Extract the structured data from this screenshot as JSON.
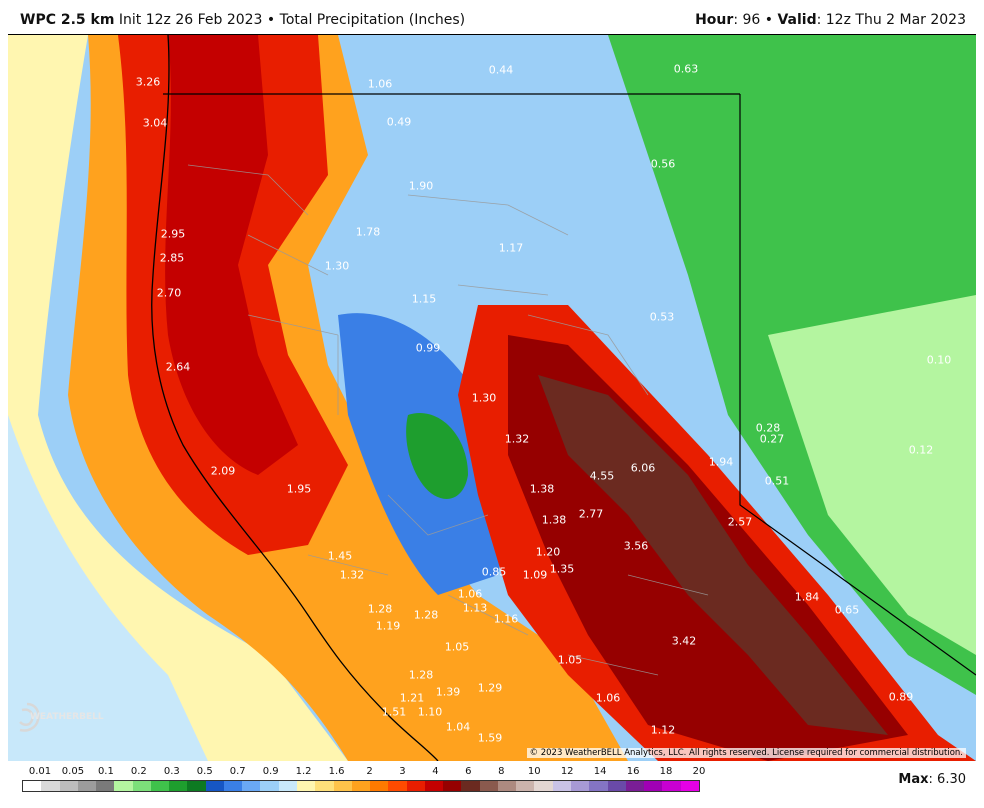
{
  "header": {
    "model": "WPC 2.5 km",
    "init": "Init 12z 26 Feb 2023",
    "sep1": "•",
    "product": "Total Precipitation (Inches)",
    "hour_label": "Hour",
    "hour_value": ": 96",
    "sep2": "•",
    "valid_label": "Valid",
    "valid_value": ": 12z Thu 2 Mar 2023"
  },
  "copyright": "© 2023 WeatherBELL Analytics, LLC. All rights reserved. License required for commercial distribution.",
  "logo_text": "WEATHERBELL",
  "max_label": "Max",
  "max_value": ": 6.30",
  "legend": {
    "labels": [
      "0.01",
      "0.05",
      "0.1",
      "0.2",
      "0.3",
      "0.5",
      "0.7",
      "0.9",
      "1.2",
      "1.6",
      "2",
      "3",
      "4",
      "6",
      "8",
      "10",
      "12",
      "14",
      "16",
      "18",
      "20"
    ],
    "colors": [
      "#ffffff",
      "#d9d9d9",
      "#bdbdbd",
      "#9c9c9c",
      "#7a7a7a",
      "#b4f5a0",
      "#7ce07a",
      "#3fc24b",
      "#1e9e2e",
      "#0d7a22",
      "#1656c4",
      "#3a7fe6",
      "#6aa8f4",
      "#9ccff7",
      "#c8e8fa",
      "#fff6b0",
      "#ffe07a",
      "#ffc34a",
      "#ffa21e",
      "#ff7a00",
      "#ff4b00",
      "#e81e00",
      "#c40000",
      "#960000",
      "#6b2a20",
      "#8a5a4e",
      "#ad8a80",
      "#cbb3ac",
      "#e3d6d2",
      "#c9c2e6",
      "#a79ad6",
      "#8474c4",
      "#6a4aa8",
      "#7a1e96",
      "#a000b4",
      "#c800d2",
      "#e600e6"
    ]
  },
  "values": [
    {
      "t": "3.26"
    },
    {
      "t": "1.06"
    },
    {
      "t": "0.44"
    },
    {
      "t": "0.63"
    },
    {
      "t": "3.04"
    },
    {
      "t": "0.49"
    },
    {
      "t": "0.56"
    },
    {
      "t": "1.90"
    },
    {
      "t": "2.95"
    },
    {
      "t": "1.78"
    },
    {
      "t": "2.85"
    },
    {
      "t": "1.17"
    },
    {
      "t": "1.30"
    },
    {
      "t": "2.70"
    },
    {
      "t": "1.15"
    },
    {
      "t": "0.53"
    },
    {
      "t": "0.99"
    },
    {
      "t": "0.10"
    },
    {
      "t": "2.64"
    },
    {
      "t": "1.30"
    },
    {
      "t": "0.28"
    },
    {
      "t": "0.27"
    },
    {
      "t": "1.32"
    },
    {
      "t": "0.12"
    },
    {
      "t": "1.94"
    },
    {
      "t": "6.06"
    },
    {
      "t": "4.55"
    },
    {
      "t": "2.09"
    },
    {
      "t": "0.51"
    },
    {
      "t": "1.95"
    },
    {
      "t": "1.38"
    },
    {
      "t": "2.77"
    },
    {
      "t": "1.38"
    },
    {
      "t": "2.57"
    },
    {
      "t": "3.56"
    },
    {
      "t": "1.45"
    },
    {
      "t": "1.20"
    },
    {
      "t": "1.32"
    },
    {
      "t": "1.35"
    },
    {
      "t": "0.85"
    },
    {
      "t": "1.09"
    },
    {
      "t": "1.06"
    },
    {
      "t": "1.84"
    },
    {
      "t": "1.28"
    },
    {
      "t": "1.13"
    },
    {
      "t": "0.65"
    },
    {
      "t": "1.28"
    },
    {
      "t": "1.19"
    },
    {
      "t": "1.16"
    },
    {
      "t": "3.42"
    },
    {
      "t": "1.05"
    },
    {
      "t": "1.05"
    },
    {
      "t": "1.28"
    },
    {
      "t": "1.29"
    },
    {
      "t": "1.39"
    },
    {
      "t": "1.21"
    },
    {
      "t": "1.06"
    },
    {
      "t": "0.89"
    },
    {
      "t": "1.51"
    },
    {
      "t": "1.10"
    },
    {
      "t": "1.04"
    },
    {
      "t": "1.12"
    },
    {
      "t": "1.59"
    }
  ]
}
